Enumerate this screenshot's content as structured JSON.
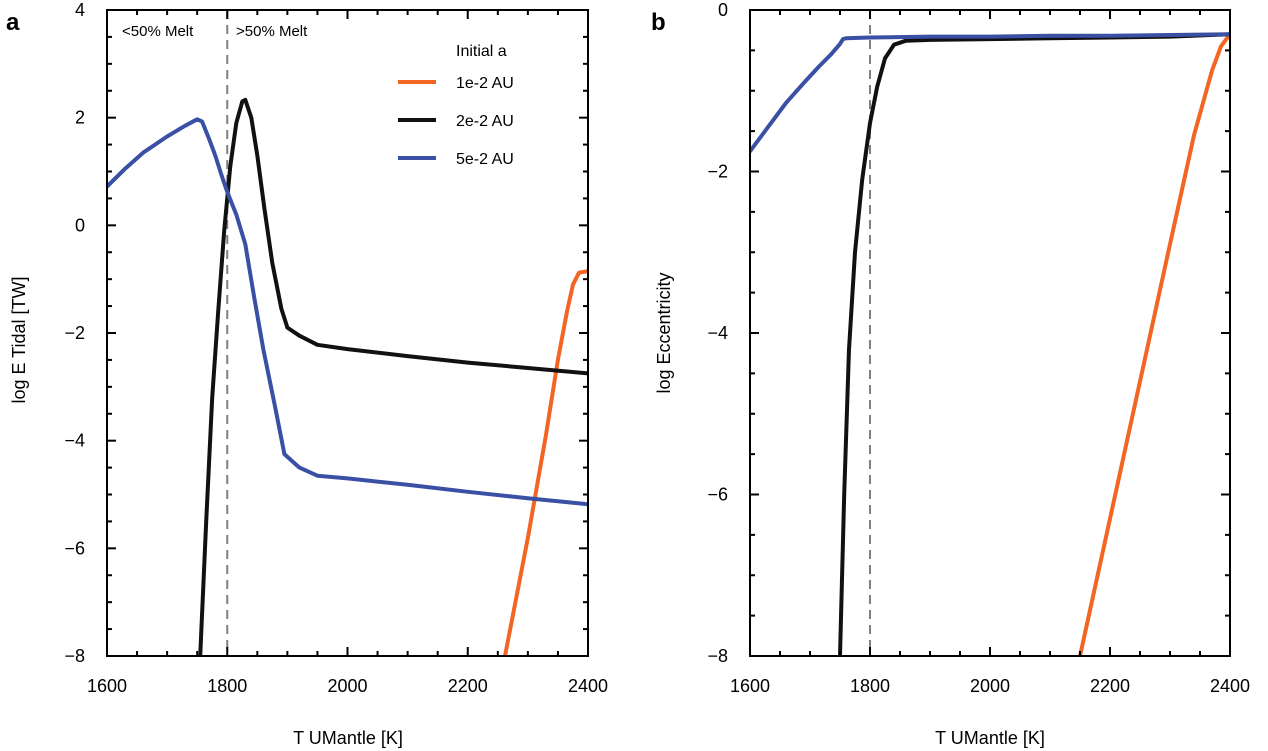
{
  "chart_data": [
    {
      "type": "line",
      "panel_label": "a",
      "xlabel": "T UMantle [K]",
      "ylabel": "log E Tidal [TW]",
      "xlim": [
        1600,
        2400
      ],
      "ylim": [
        -8,
        4
      ],
      "xticks": [
        1600,
        1800,
        2000,
        2200,
        2400
      ],
      "yticks": [
        -8,
        -6,
        -4,
        -2,
        0,
        2,
        4
      ],
      "tick_labels_x": [
        "1600",
        "1800",
        "2000",
        "2200",
        "2400"
      ],
      "tick_labels_y": [
        "−8",
        "−6",
        "−4",
        "−2",
        "0",
        "2",
        "4"
      ],
      "grid": false,
      "vline": {
        "x": 1800,
        "style": "dashed",
        "color": "#808080"
      },
      "annotations": [
        "<50% Melt",
        ">50% Melt"
      ],
      "legend": {
        "title": "Initial a",
        "position": "top-right"
      },
      "series": [
        {
          "name": "1e-2 AU",
          "color": "#f26522",
          "points": [
            [
              2262,
              -8
            ],
            [
              2300,
              -5.8
            ],
            [
              2330,
              -3.9
            ],
            [
              2350,
              -2.5
            ],
            [
              2365,
              -1.6
            ],
            [
              2375,
              -1.1
            ],
            [
              2385,
              -0.88
            ],
            [
              2400,
              -0.85
            ]
          ]
        },
        {
          "name": "2e-2 AU",
          "color": "#111111",
          "points": [
            [
              1755,
              -8
            ],
            [
              1765,
              -5.5
            ],
            [
              1775,
              -3.2
            ],
            [
              1785,
              -1.6
            ],
            [
              1795,
              -0.1
            ],
            [
              1805,
              1.1
            ],
            [
              1815,
              1.9
            ],
            [
              1825,
              2.3
            ],
            [
              1830,
              2.33
            ],
            [
              1840,
              2.0
            ],
            [
              1850,
              1.3
            ],
            [
              1862,
              0.3
            ],
            [
              1875,
              -0.7
            ],
            [
              1890,
              -1.55
            ],
            [
              1900,
              -1.9
            ],
            [
              1920,
              -2.05
            ],
            [
              1950,
              -2.22
            ],
            [
              2000,
              -2.3
            ],
            [
              2100,
              -2.43
            ],
            [
              2200,
              -2.55
            ],
            [
              2300,
              -2.65
            ],
            [
              2400,
              -2.75
            ]
          ]
        },
        {
          "name": "5e-2 AU",
          "color": "#3a50a5",
          "points": [
            [
              1600,
              0.72
            ],
            [
              1630,
              1.05
            ],
            [
              1660,
              1.35
            ],
            [
              1700,
              1.65
            ],
            [
              1730,
              1.85
            ],
            [
              1750,
              1.97
            ],
            [
              1758,
              1.93
            ],
            [
              1770,
              1.6
            ],
            [
              1780,
              1.3
            ],
            [
              1790,
              0.95
            ],
            [
              1800,
              0.62
            ],
            [
              1815,
              0.2
            ],
            [
              1830,
              -0.35
            ],
            [
              1845,
              -1.35
            ],
            [
              1860,
              -2.3
            ],
            [
              1880,
              -3.4
            ],
            [
              1895,
              -4.25
            ],
            [
              1920,
              -4.5
            ],
            [
              1950,
              -4.65
            ],
            [
              2000,
              -4.7
            ],
            [
              2100,
              -4.82
            ],
            [
              2200,
              -4.95
            ],
            [
              2300,
              -5.07
            ],
            [
              2400,
              -5.18
            ]
          ]
        }
      ]
    },
    {
      "type": "line",
      "panel_label": "b",
      "xlabel": "T UMantle [K]",
      "ylabel": "log Eccentricity",
      "xlim": [
        1600,
        2400
      ],
      "ylim": [
        -8,
        0
      ],
      "xticks": [
        1600,
        1800,
        2000,
        2200,
        2400
      ],
      "yticks": [
        -8,
        -6,
        -4,
        -2,
        0
      ],
      "tick_labels_x": [
        "1600",
        "1800",
        "2000",
        "2200",
        "2400"
      ],
      "tick_labels_y": [
        "−8",
        "−6",
        "−4",
        "−2",
        "0"
      ],
      "grid": false,
      "vline": {
        "x": 1800,
        "style": "dashed",
        "color": "#808080"
      },
      "series": [
        {
          "name": "1e-2 AU",
          "color": "#f26522",
          "points": [
            [
              2150,
              -8
            ],
            [
              2200,
              -6.3
            ],
            [
              2250,
              -4.6
            ],
            [
              2300,
              -2.9
            ],
            [
              2340,
              -1.55
            ],
            [
              2370,
              -0.75
            ],
            [
              2385,
              -0.45
            ],
            [
              2400,
              -0.3
            ]
          ]
        },
        {
          "name": "2e-2 AU",
          "color": "#111111",
          "points": [
            [
              1750,
              -8
            ],
            [
              1757,
              -6.0
            ],
            [
              1765,
              -4.2
            ],
            [
              1775,
              -3.0
            ],
            [
              1787,
              -2.1
            ],
            [
              1800,
              -1.4
            ],
            [
              1812,
              -0.95
            ],
            [
              1825,
              -0.6
            ],
            [
              1840,
              -0.43
            ],
            [
              1860,
              -0.38
            ],
            [
              1900,
              -0.37
            ],
            [
              2000,
              -0.36
            ],
            [
              2100,
              -0.35
            ],
            [
              2200,
              -0.34
            ],
            [
              2300,
              -0.33
            ],
            [
              2400,
              -0.3
            ]
          ]
        },
        {
          "name": "5e-2 AU",
          "color": "#3a50a5",
          "points": [
            [
              1600,
              -1.75
            ],
            [
              1630,
              -1.45
            ],
            [
              1660,
              -1.15
            ],
            [
              1690,
              -0.9
            ],
            [
              1715,
              -0.7
            ],
            [
              1735,
              -0.55
            ],
            [
              1750,
              -0.42
            ],
            [
              1755,
              -0.36
            ],
            [
              1760,
              -0.35
            ],
            [
              1800,
              -0.34
            ],
            [
              1900,
              -0.33
            ],
            [
              2000,
              -0.33
            ],
            [
              2100,
              -0.32
            ],
            [
              2200,
              -0.32
            ],
            [
              2300,
              -0.31
            ],
            [
              2400,
              -0.3
            ]
          ]
        }
      ]
    }
  ]
}
